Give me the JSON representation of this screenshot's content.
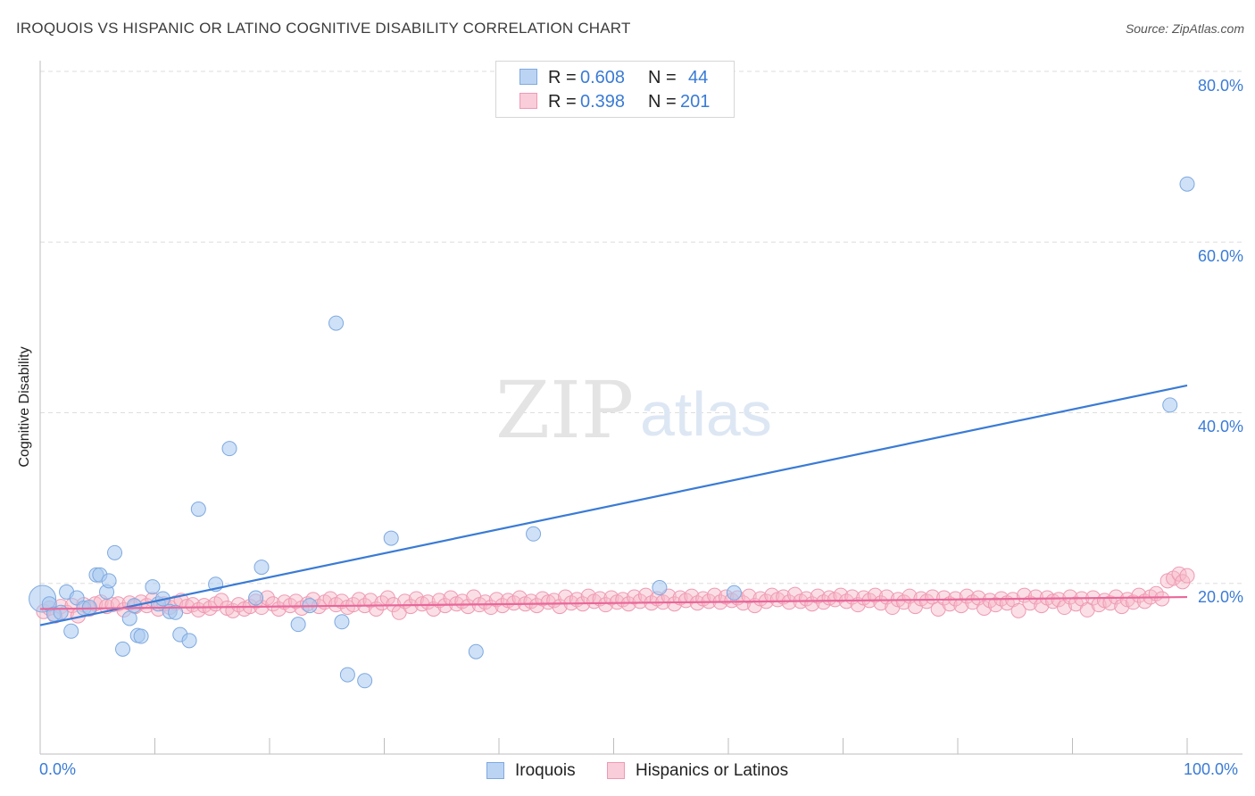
{
  "title": "IROQUOIS VS HISPANIC OR LATINO COGNITIVE DISABILITY CORRELATION CHART",
  "source": "Source: ZipAtlas.com",
  "watermark": {
    "zip": "ZIP",
    "atlas": "atlas"
  },
  "legend_top": [
    {
      "r_label": "R =",
      "r_value": "0.608",
      "n_label": "N =",
      "n_value": "44",
      "color": "#a8c8f0"
    },
    {
      "r_label": "R =",
      "r_value": "0.398",
      "n_label": "N =",
      "n_value": "201",
      "color": "#f6b8c8"
    }
  ],
  "legend_bottom": [
    {
      "label": "Iroquois",
      "color": "#a8c8f0"
    },
    {
      "label": "Hispanics or Latinos",
      "color": "#f6b8c8"
    }
  ],
  "chart_data": {
    "type": "scatter",
    "ylabel": "Cognitive Disability",
    "xlabel": "",
    "xlim": [
      0,
      100
    ],
    "ylim": [
      0,
      80
    ],
    "x_tick_labels": [
      "0.0%",
      "100.0%"
    ],
    "y_ticks": [
      20,
      40,
      60,
      80
    ],
    "y_tick_labels": [
      "20.0%",
      "40.0%",
      "60.0%",
      "80.0%"
    ],
    "grid": "horizontal dashed",
    "series": [
      {
        "name": "Iroquois",
        "color": "#3a7bd5",
        "fill": "#a8c8f0",
        "trend": {
          "x": [
            0,
            100
          ],
          "y": [
            15.1,
            43.2
          ]
        },
        "points": [
          [
            0.2,
            18.2
          ],
          [
            0.8,
            17.6
          ],
          [
            1.2,
            16.4
          ],
          [
            1.8,
            16.6
          ],
          [
            2.3,
            19.0
          ],
          [
            2.7,
            14.4
          ],
          [
            3.2,
            18.3
          ],
          [
            3.8,
            17.1
          ],
          [
            4.3,
            17.2
          ],
          [
            4.9,
            21.0
          ],
          [
            5.2,
            21.0
          ],
          [
            5.8,
            19.0
          ],
          [
            6.0,
            20.3
          ],
          [
            6.5,
            23.6
          ],
          [
            7.2,
            12.3
          ],
          [
            7.8,
            15.9
          ],
          [
            8.2,
            17.4
          ],
          [
            8.5,
            13.9
          ],
          [
            8.8,
            13.8
          ],
          [
            9.8,
            19.6
          ],
          [
            10.3,
            17.6
          ],
          [
            10.7,
            18.2
          ],
          [
            11.3,
            16.7
          ],
          [
            11.8,
            16.6
          ],
          [
            12.2,
            14.0
          ],
          [
            13.0,
            13.3
          ],
          [
            13.8,
            28.7
          ],
          [
            15.3,
            19.9
          ],
          [
            16.5,
            35.8
          ],
          [
            18.8,
            18.3
          ],
          [
            19.3,
            21.9
          ],
          [
            22.5,
            15.2
          ],
          [
            23.5,
            17.4
          ],
          [
            25.8,
            50.5
          ],
          [
            26.3,
            15.5
          ],
          [
            26.8,
            9.3
          ],
          [
            28.3,
            8.6
          ],
          [
            30.6,
            25.3
          ],
          [
            38.0,
            12.0
          ],
          [
            43.0,
            25.8
          ],
          [
            54.0,
            19.5
          ],
          [
            60.5,
            18.9
          ],
          [
            98.5,
            40.9
          ],
          [
            100.0,
            66.8
          ]
        ]
      },
      {
        "name": "Hispanics or Latinos",
        "color": "#e8679a",
        "fill": "#f6b8c8",
        "trend": {
          "x": [
            0,
            100
          ],
          "y": [
            17.0,
            18.4
          ]
        },
        "points": [
          [
            0.3,
            16.7
          ],
          [
            0.8,
            17.1
          ],
          [
            1.3,
            16.2
          ],
          [
            1.8,
            17.3
          ],
          [
            2.3,
            16.6
          ],
          [
            2.8,
            17.4
          ],
          [
            3.3,
            16.2
          ],
          [
            3.8,
            17.5
          ],
          [
            4.3,
            17.0
          ],
          [
            4.8,
            17.6
          ],
          [
            5.3,
            17.8
          ],
          [
            5.8,
            17.3
          ],
          [
            6.3,
            17.5
          ],
          [
            6.8,
            17.6
          ],
          [
            7.3,
            16.9
          ],
          [
            7.8,
            17.7
          ],
          [
            8.3,
            17.3
          ],
          [
            8.8,
            17.8
          ],
          [
            9.3,
            17.4
          ],
          [
            9.8,
            18.1
          ],
          [
            10.3,
            17.0
          ],
          [
            10.8,
            17.6
          ],
          [
            11.3,
            17.2
          ],
          [
            11.8,
            17.7
          ],
          [
            12.3,
            18.0
          ],
          [
            12.8,
            17.3
          ],
          [
            13.3,
            17.5
          ],
          [
            13.8,
            16.9
          ],
          [
            14.3,
            17.4
          ],
          [
            14.8,
            17.1
          ],
          [
            15.3,
            17.6
          ],
          [
            15.8,
            18.0
          ],
          [
            16.3,
            17.1
          ],
          [
            16.8,
            16.8
          ],
          [
            17.3,
            17.5
          ],
          [
            17.8,
            17.0
          ],
          [
            18.3,
            17.3
          ],
          [
            18.8,
            17.9
          ],
          [
            19.3,
            17.2
          ],
          [
            19.8,
            18.3
          ],
          [
            20.3,
            17.6
          ],
          [
            20.8,
            17.0
          ],
          [
            21.3,
            17.8
          ],
          [
            21.8,
            17.4
          ],
          [
            22.3,
            17.9
          ],
          [
            22.8,
            17.1
          ],
          [
            23.3,
            17.6
          ],
          [
            23.8,
            18.1
          ],
          [
            24.3,
            17.3
          ],
          [
            24.8,
            17.8
          ],
          [
            25.3,
            18.2
          ],
          [
            25.8,
            17.5
          ],
          [
            26.3,
            17.9
          ],
          [
            26.8,
            17.2
          ],
          [
            27.3,
            17.5
          ],
          [
            27.8,
            18.1
          ],
          [
            28.3,
            17.4
          ],
          [
            28.8,
            18.0
          ],
          [
            29.3,
            17.0
          ],
          [
            29.8,
            17.7
          ],
          [
            30.3,
            18.3
          ],
          [
            30.8,
            17.5
          ],
          [
            31.3,
            16.6
          ],
          [
            31.8,
            17.9
          ],
          [
            32.3,
            17.3
          ],
          [
            32.8,
            18.2
          ],
          [
            33.3,
            17.6
          ],
          [
            33.8,
            17.8
          ],
          [
            34.3,
            17.0
          ],
          [
            34.8,
            18.0
          ],
          [
            35.3,
            17.4
          ],
          [
            35.8,
            18.3
          ],
          [
            36.3,
            17.6
          ],
          [
            36.8,
            17.9
          ],
          [
            37.3,
            17.3
          ],
          [
            37.8,
            18.4
          ],
          [
            38.3,
            17.5
          ],
          [
            38.8,
            17.8
          ],
          [
            39.3,
            17.2
          ],
          [
            39.8,
            18.1
          ],
          [
            40.3,
            17.4
          ],
          [
            40.8,
            18.0
          ],
          [
            41.3,
            17.7
          ],
          [
            41.8,
            18.3
          ],
          [
            42.3,
            17.6
          ],
          [
            42.8,
            17.9
          ],
          [
            43.3,
            17.4
          ],
          [
            43.8,
            18.2
          ],
          [
            44.3,
            17.8
          ],
          [
            44.8,
            18.0
          ],
          [
            45.3,
            17.3
          ],
          [
            45.8,
            18.4
          ],
          [
            46.3,
            17.7
          ],
          [
            46.8,
            18.1
          ],
          [
            47.3,
            17.6
          ],
          [
            47.8,
            18.5
          ],
          [
            48.3,
            17.9
          ],
          [
            48.8,
            18.2
          ],
          [
            49.3,
            17.5
          ],
          [
            49.8,
            18.3
          ],
          [
            50.3,
            17.8
          ],
          [
            50.8,
            18.1
          ],
          [
            51.3,
            17.6
          ],
          [
            51.8,
            18.4
          ],
          [
            52.3,
            17.9
          ],
          [
            52.8,
            18.6
          ],
          [
            53.3,
            17.7
          ],
          [
            53.8,
            18.2
          ],
          [
            54.3,
            17.8
          ],
          [
            54.8,
            18.5
          ],
          [
            55.3,
            17.6
          ],
          [
            55.8,
            18.3
          ],
          [
            56.3,
            18.0
          ],
          [
            56.8,
            18.5
          ],
          [
            57.3,
            17.7
          ],
          [
            57.8,
            18.2
          ],
          [
            58.3,
            17.9
          ],
          [
            58.8,
            18.6
          ],
          [
            59.3,
            17.8
          ],
          [
            59.8,
            18.4
          ],
          [
            60.3,
            18.0
          ],
          [
            60.8,
            18.3
          ],
          [
            61.3,
            17.7
          ],
          [
            61.8,
            18.5
          ],
          [
            62.3,
            17.4
          ],
          [
            62.8,
            18.2
          ],
          [
            63.3,
            17.9
          ],
          [
            63.8,
            18.6
          ],
          [
            64.3,
            18.1
          ],
          [
            64.8,
            18.4
          ],
          [
            65.3,
            17.8
          ],
          [
            65.8,
            18.7
          ],
          [
            66.3,
            17.9
          ],
          [
            66.8,
            18.2
          ],
          [
            67.3,
            17.6
          ],
          [
            67.8,
            18.5
          ],
          [
            68.3,
            17.8
          ],
          [
            68.8,
            18.3
          ],
          [
            69.3,
            18.1
          ],
          [
            69.8,
            18.6
          ],
          [
            70.3,
            17.9
          ],
          [
            70.8,
            18.4
          ],
          [
            71.3,
            17.5
          ],
          [
            71.8,
            18.3
          ],
          [
            72.3,
            18.0
          ],
          [
            72.8,
            18.6
          ],
          [
            73.3,
            17.7
          ],
          [
            73.8,
            18.4
          ],
          [
            74.3,
            17.2
          ],
          [
            74.8,
            18.1
          ],
          [
            75.3,
            17.8
          ],
          [
            75.8,
            18.5
          ],
          [
            76.3,
            17.3
          ],
          [
            76.8,
            18.2
          ],
          [
            77.3,
            17.9
          ],
          [
            77.8,
            18.4
          ],
          [
            78.3,
            17.0
          ],
          [
            78.8,
            18.3
          ],
          [
            79.3,
            17.6
          ],
          [
            79.8,
            18.2
          ],
          [
            80.3,
            17.4
          ],
          [
            80.8,
            18.5
          ],
          [
            81.3,
            17.8
          ],
          [
            81.8,
            18.3
          ],
          [
            82.3,
            17.1
          ],
          [
            82.8,
            18.0
          ],
          [
            83.3,
            17.5
          ],
          [
            83.8,
            18.2
          ],
          [
            84.3,
            17.7
          ],
          [
            84.8,
            18.1
          ],
          [
            85.3,
            16.8
          ],
          [
            85.8,
            18.6
          ],
          [
            86.3,
            17.7
          ],
          [
            86.8,
            18.4
          ],
          [
            87.3,
            17.4
          ],
          [
            87.8,
            18.3
          ],
          [
            88.3,
            17.9
          ],
          [
            88.8,
            18.1
          ],
          [
            89.3,
            17.2
          ],
          [
            89.8,
            18.4
          ],
          [
            90.3,
            17.6
          ],
          [
            90.8,
            18.2
          ],
          [
            91.3,
            16.9
          ],
          [
            91.8,
            18.3
          ],
          [
            92.3,
            17.5
          ],
          [
            92.8,
            18.0
          ],
          [
            93.3,
            17.7
          ],
          [
            93.8,
            18.4
          ],
          [
            94.3,
            17.3
          ],
          [
            94.8,
            18.1
          ],
          [
            95.3,
            17.8
          ],
          [
            95.8,
            18.6
          ],
          [
            96.3,
            17.9
          ],
          [
            96.8,
            18.4
          ],
          [
            97.3,
            18.8
          ],
          [
            97.8,
            18.2
          ],
          [
            98.3,
            20.3
          ],
          [
            98.8,
            20.6
          ],
          [
            99.3,
            21.1
          ],
          [
            99.6,
            20.2
          ],
          [
            100.0,
            20.9
          ]
        ]
      }
    ]
  }
}
